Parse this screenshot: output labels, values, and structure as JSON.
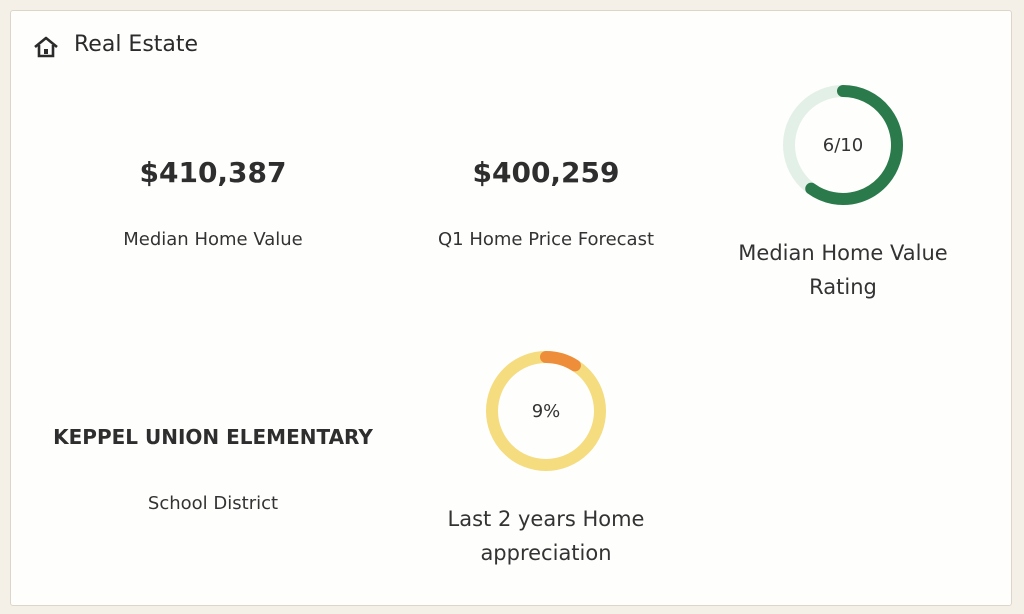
{
  "header": {
    "title": "Real Estate"
  },
  "stats": [
    {
      "value": "$410,387",
      "label": "Median Home Value"
    },
    {
      "value": "$400,259",
      "label": "Q1 Home Price Forecast"
    },
    {
      "value": "KEPPEL UNION ELEMENTARY",
      "label": "School District"
    }
  ],
  "gauges": [
    {
      "value": 6,
      "max": 10,
      "label": "6/10",
      "caption": "Median Home Value Rating",
      "color": "#2b7a4b",
      "track": "#e3f0e7"
    },
    {
      "value": 9,
      "max": 100,
      "label": "9%",
      "caption": "Last 2 years Home appreciation",
      "color": "#ee8d3a",
      "track": "#f4dc7f"
    }
  ]
}
